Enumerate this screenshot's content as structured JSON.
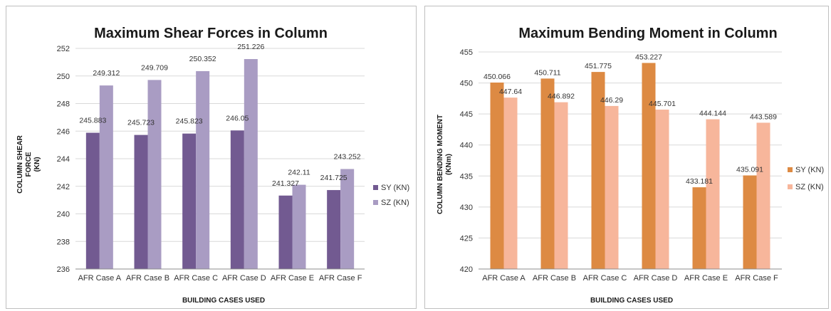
{
  "chart_data": [
    {
      "type": "bar",
      "title": "Maximum Shear Forces in Column",
      "xlabel": "BUILDING CASES USED",
      "ylabel_lines": [
        "COLUMN SHEAR",
        "FORCE",
        "(KN)"
      ],
      "categories": [
        "AFR Case A",
        "AFR Case B",
        "AFR Case C",
        "AFR Case D",
        "AFR Case E",
        "AFR Case F"
      ],
      "series": [
        {
          "name": "SY (KN)",
          "values": [
            245.883,
            245.723,
            245.823,
            246.05,
            241.327,
            241.725
          ],
          "labels": [
            "245.883",
            "245.723",
            "245.823",
            "246.05",
            "241.327",
            "241.725"
          ],
          "color": "#725a91"
        },
        {
          "name": "SZ (KN)",
          "values": [
            249.312,
            249.709,
            250.352,
            251.226,
            242.11,
            243.252
          ],
          "labels": [
            "249.312",
            "249.709",
            "250.352",
            "251.226",
            "242.11",
            "243.252"
          ],
          "color": "#a99cc3"
        }
      ],
      "ylim": [
        236,
        252
      ],
      "yticks": [
        236,
        238,
        240,
        242,
        244,
        246,
        248,
        250,
        252
      ],
      "grid": true,
      "legend": "right"
    },
    {
      "type": "bar",
      "title": "Maximum Bending Moment in Column",
      "xlabel": "BUILDING CASES USED",
      "ylabel_lines": [
        "COLUMN BENDING MOMENT",
        "(KNm)"
      ],
      "categories": [
        "AFR Case A",
        "AFR Case B",
        "AFR Case C",
        "AFR Case D",
        "AFR Case E",
        "AFR Case F"
      ],
      "series": [
        {
          "name": "SY (KN)",
          "values": [
            450.066,
            450.711,
            451.775,
            453.227,
            433.181,
            435.091
          ],
          "labels": [
            "450.066",
            "450.711",
            "451.775",
            "453.227",
            "433.181",
            "435.091"
          ],
          "color": "#dd8a43"
        },
        {
          "name": "SZ (KN)",
          "values": [
            447.64,
            446.892,
            446.29,
            445.701,
            444.144,
            443.589
          ],
          "labels": [
            "447.64",
            "446.892",
            "446.29",
            "445.701",
            "444.144",
            "443.589"
          ],
          "color": "#f7b69b"
        }
      ],
      "ylim": [
        420,
        455
      ],
      "yticks": [
        420,
        425,
        430,
        435,
        440,
        445,
        450,
        455
      ],
      "grid": true,
      "legend": "right"
    }
  ]
}
